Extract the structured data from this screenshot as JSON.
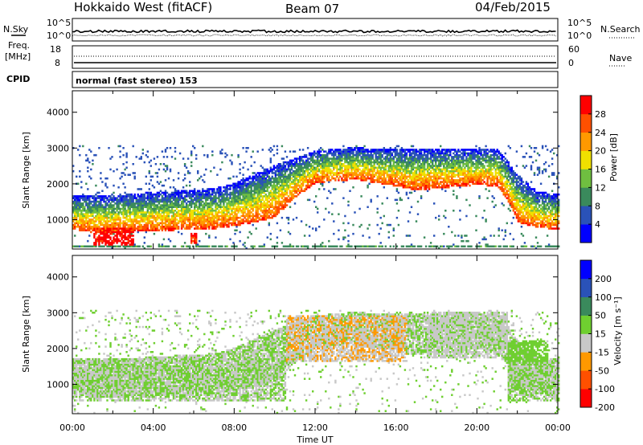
{
  "header": {
    "station": "Hokkaido West (fitACF)",
    "beam": "Beam 07",
    "date": "04/Feb/2015"
  },
  "noise_panel": {
    "left_label": "N.Sky",
    "right_label": "N.Search",
    "tick_top": "10^5",
    "tick_bottom": "10^0"
  },
  "freq_panel": {
    "left_label_1": "Freq.",
    "left_label_2": "[MHz]",
    "right_label": "Nave",
    "left_ticks": [
      "18",
      "8"
    ],
    "right_ticks": [
      "60",
      "0"
    ]
  },
  "cpid": {
    "label": "CPID",
    "value": "normal (fast stereo) 153"
  },
  "x_axis": {
    "label": "Time UT",
    "ticks": [
      "00:00",
      "04:00",
      "08:00",
      "12:00",
      "16:00",
      "20:00",
      "00:00"
    ]
  },
  "chart_data": [
    {
      "type": "heatmap",
      "panel": "power",
      "ylabel": "Slant Range [km]",
      "yticks": [
        1000,
        2000,
        3000,
        4000
      ],
      "ylim": [
        180,
        4600
      ],
      "xlim_hours": [
        0,
        24
      ],
      "colorbar": {
        "label": "Power [dB]",
        "ticks": [
          "28",
          "24",
          "20",
          "16",
          "12",
          "8",
          "4"
        ],
        "range": [
          0,
          30
        ],
        "colors": [
          "#0000ff",
          "#2a52b8",
          "#3a8a5c",
          "#6fbf40",
          "#f0e000",
          "#ff9900",
          "#ff5000",
          "#ff0000"
        ]
      },
      "bands": [
        {
          "t": 0.0,
          "lo": 700,
          "hi": 1650
        },
        {
          "t": 1.0,
          "lo": 620,
          "hi": 1650
        },
        {
          "t": 2.0,
          "lo": 620,
          "hi": 1650
        },
        {
          "t": 3.0,
          "lo": 640,
          "hi": 1700
        },
        {
          "t": 4.0,
          "lo": 660,
          "hi": 1750
        },
        {
          "t": 5.0,
          "lo": 680,
          "hi": 1780
        },
        {
          "t": 6.0,
          "lo": 700,
          "hi": 1800
        },
        {
          "t": 7.0,
          "lo": 720,
          "hi": 1850
        },
        {
          "t": 8.0,
          "lo": 800,
          "hi": 2000
        },
        {
          "t": 9.0,
          "lo": 900,
          "hi": 2250
        },
        {
          "t": 10.0,
          "lo": 1050,
          "hi": 2500
        },
        {
          "t": 11.0,
          "lo": 1600,
          "hi": 2700
        },
        {
          "t": 12.0,
          "lo": 2000,
          "hi": 2900
        },
        {
          "t": 13.0,
          "lo": 2050,
          "hi": 2950
        },
        {
          "t": 14.0,
          "lo": 2100,
          "hi": 3000
        },
        {
          "t": 15.0,
          "lo": 2000,
          "hi": 2950
        },
        {
          "t": 16.0,
          "lo": 1900,
          "hi": 2950
        },
        {
          "t": 17.0,
          "lo": 1800,
          "hi": 2950
        },
        {
          "t": 18.0,
          "lo": 1850,
          "hi": 2950
        },
        {
          "t": 19.0,
          "lo": 1900,
          "hi": 2950
        },
        {
          "t": 20.0,
          "lo": 1950,
          "hi": 2950
        },
        {
          "t": 21.0,
          "lo": 1900,
          "hi": 2950
        },
        {
          "t": 21.5,
          "lo": 1500,
          "hi": 2600
        },
        {
          "t": 22.0,
          "lo": 900,
          "hi": 2200
        },
        {
          "t": 23.0,
          "lo": 750,
          "hi": 1750
        },
        {
          "t": 24.0,
          "lo": 700,
          "hi": 1700
        }
      ],
      "features": [
        {
          "name": "near-range strong echoes",
          "t": [
            1.0,
            3.0
          ],
          "range": [
            250,
            750
          ],
          "value": 28
        },
        {
          "name": "near-range strong echoes",
          "t": [
            5.8,
            6.1
          ],
          "range": [
            300,
            600
          ],
          "value": 27
        },
        {
          "name": "ground echoes",
          "t": [
            0.0,
            24.0
          ],
          "range": [
            200,
            260
          ],
          "value": 10
        }
      ]
    },
    {
      "type": "heatmap",
      "panel": "velocity",
      "ylabel": "Slant Range [km]",
      "yticks": [
        1000,
        2000,
        3000,
        4000
      ],
      "ylim": [
        180,
        4600
      ],
      "xlim_hours": [
        0,
        24
      ],
      "colorbar": {
        "label": "Velocity [m s⁻¹]",
        "ticks": [
          "200",
          "100",
          "50",
          "15",
          "-15",
          "-50",
          "-100",
          "-200"
        ],
        "range": [
          -250,
          250
        ],
        "colors": [
          "#ff0000",
          "#ff5000",
          "#ff9900",
          "#c8c8c8",
          "#6fcf30",
          "#3a8a5c",
          "#2a52b8",
          "#0000ff"
        ]
      },
      "features": [
        {
          "name": "low-velocity (ground-like) echoes",
          "t": [
            0.0,
            10.5
          ],
          "range": [
            500,
            1700
          ],
          "value": 0
        },
        {
          "name": "westward / away flow",
          "t": [
            10.5,
            16.5
          ],
          "range": [
            1600,
            2900
          ],
          "value": -60
        },
        {
          "name": "mixed velocities",
          "t": [
            17.5,
            21.5
          ],
          "range": [
            1700,
            3000
          ],
          "value": -10
        },
        {
          "name": "positive velocity patches",
          "t": [
            21.5,
            23.5
          ],
          "range": [
            800,
            2200
          ],
          "value": 30
        },
        {
          "name": "low-velocity echoes",
          "t": [
            21.5,
            24.0
          ],
          "range": [
            500,
            1600
          ],
          "value": 0
        }
      ]
    }
  ]
}
